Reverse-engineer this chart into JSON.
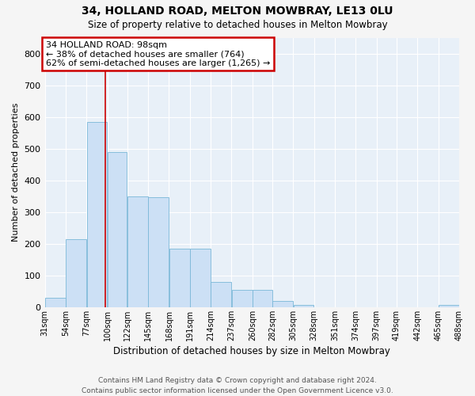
{
  "title1": "34, HOLLAND ROAD, MELTON MOWBRAY, LE13 0LU",
  "title2": "Size of property relative to detached houses in Melton Mowbray",
  "xlabel": "Distribution of detached houses by size in Melton Mowbray",
  "ylabel": "Number of detached properties",
  "bar_color": "#cce0f5",
  "bar_edge_color": "#7ab8d8",
  "bg_color": "#e8f0f8",
  "grid_color": "#ffffff",
  "annotation_text": "34 HOLLAND ROAD: 98sqm\n← 38% of detached houses are smaller (764)\n62% of semi-detached houses are larger (1,265) →",
  "vline_x": 98,
  "bin_edges": [
    31,
    54,
    77,
    100,
    122,
    145,
    168,
    191,
    214,
    237,
    260,
    282,
    305,
    328,
    351,
    374,
    397,
    419,
    442,
    465,
    488
  ],
  "bin_labels": [
    "31sqm",
    "54sqm",
    "77sqm",
    "100sqm",
    "122sqm",
    "145sqm",
    "168sqm",
    "191sqm",
    "214sqm",
    "237sqm",
    "260sqm",
    "282sqm",
    "305sqm",
    "328sqm",
    "351sqm",
    "374sqm",
    "397sqm",
    "419sqm",
    "442sqm",
    "465sqm",
    "488sqm"
  ],
  "bar_heights": [
    30,
    215,
    585,
    490,
    350,
    348,
    185,
    185,
    80,
    55,
    55,
    20,
    8,
    0,
    0,
    0,
    0,
    0,
    0,
    8
  ],
  "ylim": [
    0,
    850
  ],
  "yticks": [
    0,
    100,
    200,
    300,
    400,
    500,
    600,
    700,
    800
  ],
  "footer": "Contains HM Land Registry data © Crown copyright and database right 2024.\nContains public sector information licensed under the Open Government Licence v3.0.",
  "annot_box_color": "#ffffff",
  "annot_border_color": "#cc0000",
  "vline_color": "#cc0000",
  "fig_bg": "#f5f5f5"
}
